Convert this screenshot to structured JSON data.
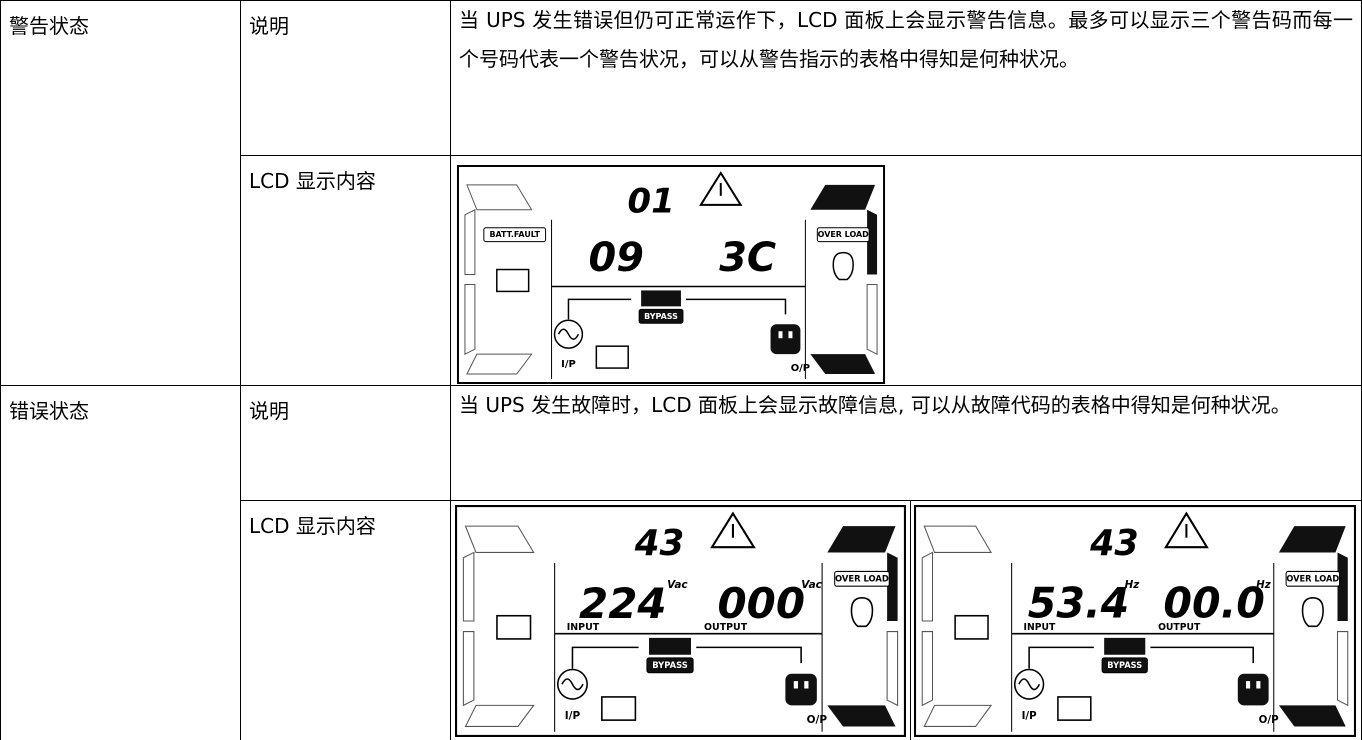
{
  "table": {
    "rows": [
      {
        "state": "警告状态",
        "description_label": "说明",
        "description": "当 UPS 发生错误但仍可正常运作下，LCD 面板上会显示警告信息。最多可以显示三个警告码而每一个号码代表一个警告状况，可以从警告指示的表格中得知是何种状况。",
        "display_label": "LCD 显示内容",
        "displays": [
          {
            "top_code": "01",
            "left_badge": "BATT.FAULT",
            "right_badge": "OVER LOAD",
            "left_reading": "09",
            "right_reading": "3C",
            "bypass": "BYPASS",
            "input_label": "I/P",
            "output_label": "O/P"
          }
        ]
      },
      {
        "state": "错误状态",
        "description_label": "说明",
        "description": "当 UPS 发生故障时，LCD 面板上会显示故障信息, 可以从故障代码的表格中得知是何种状况。",
        "display_label": "LCD 显示内容",
        "displays": [
          {
            "top_code": "43",
            "right_badge": "OVER LOAD",
            "left_reading": "224",
            "left_unit": "Vac",
            "right_reading": "000",
            "right_unit": "Vac",
            "input_caption": "INPUT",
            "output_caption": "OUTPUT",
            "bypass": "BYPASS",
            "input_label": "I/P",
            "output_label": "O/P"
          },
          {
            "top_code": "43",
            "right_badge": "OVER LOAD",
            "left_reading": "53.4",
            "left_unit": "Hz",
            "right_reading": "00.0",
            "right_unit": "Hz",
            "input_caption": "INPUT",
            "output_caption": "OUTPUT",
            "bypass": "BYPASS",
            "input_label": "I/P",
            "output_label": "O/P"
          }
        ]
      }
    ]
  }
}
